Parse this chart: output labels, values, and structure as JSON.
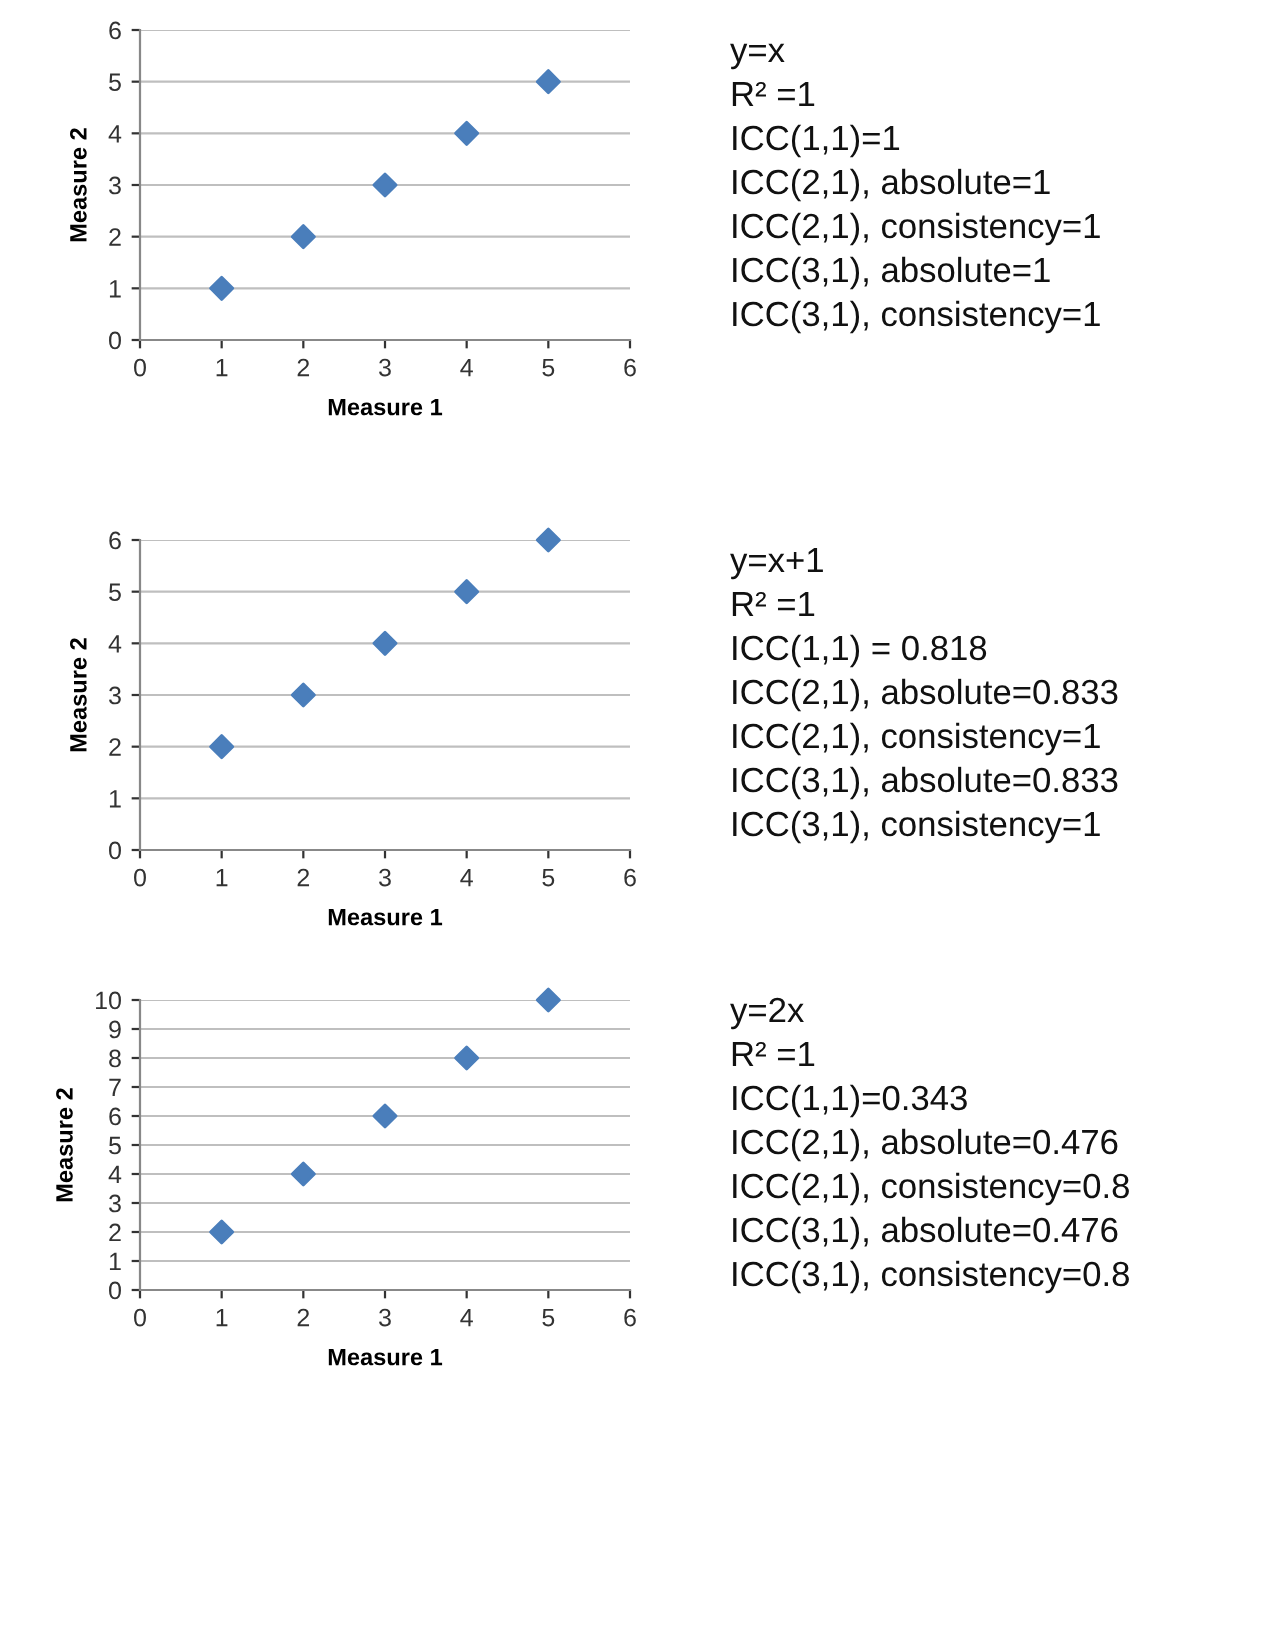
{
  "chart_data": [
    {
      "type": "scatter",
      "xlabel": "Measure 1",
      "ylabel": "Measure 2",
      "x": [
        1,
        2,
        3,
        4,
        5
      ],
      "series": [
        {
          "color": "#4a7ebb",
          "values": [
            1,
            2,
            3,
            4,
            5
          ]
        }
      ],
      "xlim": [
        0,
        6
      ],
      "xticks": [
        0,
        1,
        2,
        3,
        4,
        5,
        6
      ],
      "ylim": [
        0,
        6
      ],
      "yticks": [
        0,
        1,
        2,
        3,
        4,
        5,
        6
      ],
      "grid": "y",
      "marker": "diamond",
      "annotations": [
        "y=x",
        "R² =1",
        "ICC(1,1)=1",
        "ICC(2,1), absolute=1",
        "ICC(2,1), consistency=1",
        "ICC(3,1), absolute=1",
        "ICC(3,1), consistency=1"
      ]
    },
    {
      "type": "scatter",
      "xlabel": "Measure 1",
      "ylabel": "Measure 2",
      "x": [
        1,
        2,
        3,
        4,
        5
      ],
      "series": [
        {
          "color": "#4a7ebb",
          "values": [
            2,
            3,
            4,
            5,
            6
          ]
        }
      ],
      "xlim": [
        0,
        6
      ],
      "xticks": [
        0,
        1,
        2,
        3,
        4,
        5,
        6
      ],
      "ylim": [
        0,
        6
      ],
      "yticks": [
        0,
        1,
        2,
        3,
        4,
        5,
        6
      ],
      "grid": "y",
      "marker": "diamond",
      "annotations": [
        "y=x+1",
        "R² =1",
        "ICC(1,1) = 0.818",
        "ICC(2,1), absolute=0.833",
        "ICC(2,1), consistency=1",
        "ICC(3,1), absolute=0.833",
        "ICC(3,1), consistency=1"
      ]
    },
    {
      "type": "scatter",
      "xlabel": "Measure 1",
      "ylabel": "Measure 2",
      "x": [
        1,
        2,
        3,
        4,
        5
      ],
      "series": [
        {
          "color": "#4a7ebb",
          "values": [
            2,
            4,
            6,
            8,
            10
          ]
        }
      ],
      "xlim": [
        0,
        6
      ],
      "xticks": [
        0,
        1,
        2,
        3,
        4,
        5,
        6
      ],
      "ylim": [
        0,
        10
      ],
      "yticks": [
        0,
        1,
        2,
        3,
        4,
        5,
        6,
        7,
        8,
        9,
        10
      ],
      "grid": "y",
      "marker": "diamond",
      "annotations": [
        "y=2x",
        "R² =1",
        "ICC(1,1)=0.343",
        "ICC(2,1), absolute=0.476",
        "ICC(2,1), consistency=0.8",
        "ICC(3,1), absolute=0.476",
        "ICC(3,1), consistency=0.8"
      ]
    }
  ]
}
